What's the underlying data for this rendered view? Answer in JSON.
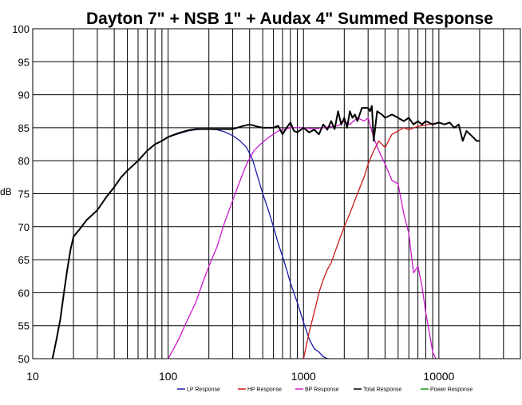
{
  "chart_data": {
    "type": "line",
    "title": "Dayton 7\" + NSB 1\" + Audax 4\"  Summed Response",
    "xlabel": "",
    "ylabel": "dB",
    "xscale": "log",
    "xlim": [
      10,
      40000
    ],
    "ylim": [
      50,
      100
    ],
    "grid": true,
    "legend_position": "bottom",
    "x_tick_labels": [
      "10",
      "100",
      "1000",
      "10000"
    ],
    "y_tick_labels": [
      "100",
      "95",
      "90",
      "85",
      "80",
      "75",
      "70",
      "65",
      "60",
      "55",
      "50"
    ],
    "series": [
      {
        "name": "LP Response",
        "color": "#1a1aa8",
        "x": [
          100,
          120,
          140,
          160,
          180,
          200,
          230,
          260,
          300,
          340,
          380,
          420,
          460,
          500,
          550,
          600,
          650,
          700,
          750,
          800,
          900,
          1000,
          1100,
          1200,
          1300,
          1400,
          1500
        ],
        "y": [
          83.6,
          84.1,
          84.5,
          84.7,
          84.8,
          84.8,
          84.7,
          84.4,
          83.8,
          83.0,
          82.0,
          80.2,
          77.5,
          75.0,
          72.5,
          70.0,
          67.5,
          65.5,
          63.5,
          61.5,
          58.5,
          55.5,
          53.0,
          51.5,
          51.0,
          50.3,
          50.0
        ]
      },
      {
        "name": "HP Response",
        "color": "#cc1a1a",
        "x": [
          1000,
          1050,
          1100,
          1200,
          1300,
          1400,
          1500,
          1600,
          1800,
          2000,
          2200,
          2500,
          2800,
          3000,
          3300,
          3600,
          4000,
          4500,
          5000,
          5500,
          6000,
          7000,
          8000,
          9000,
          10000
        ],
        "y": [
          50.0,
          52.0,
          54.0,
          57.0,
          60.0,
          62.0,
          63.5,
          64.5,
          67.5,
          70.0,
          72.0,
          75.0,
          77.5,
          79.5,
          81.5,
          83.0,
          82.0,
          84.0,
          84.5,
          85.0,
          84.7,
          85.2,
          85.4,
          85.6,
          85.8
        ]
      },
      {
        "name": "BP Response",
        "color": "#cc1acc",
        "x": [
          100,
          110,
          120,
          140,
          160,
          180,
          200,
          230,
          260,
          300,
          340,
          380,
          430,
          480,
          550,
          650,
          800,
          1000,
          1200,
          1500,
          1800,
          2000,
          2200,
          2500,
          2800,
          3000,
          3300,
          3600,
          4000,
          4500,
          5000,
          5500,
          6000,
          6500,
          7000,
          7500,
          8000,
          8500,
          9000,
          9500
        ],
        "y": [
          50.0,
          51.5,
          53.0,
          56.0,
          58.5,
          61.5,
          64.0,
          67.0,
          70.5,
          74.0,
          77.0,
          79.5,
          81.5,
          82.5,
          83.5,
          84.5,
          85.0,
          85.0,
          84.8,
          85.1,
          85.3,
          86.0,
          85.5,
          86.5,
          86.0,
          86.5,
          83.5,
          81.5,
          79.5,
          77.0,
          76.5,
          72.0,
          69.0,
          63.0,
          64.0,
          61.0,
          57.0,
          54.0,
          51.0,
          50.0
        ]
      },
      {
        "name": "Total Response",
        "color": "#000000",
        "x": [
          14,
          15,
          16,
          17,
          18,
          19,
          20,
          22,
          25,
          30,
          35,
          40,
          45,
          50,
          60,
          70,
          80,
          90,
          100,
          120,
          140,
          160,
          180,
          200,
          250,
          300,
          350,
          400,
          450,
          500,
          550,
          600,
          650,
          700,
          750,
          800,
          850,
          900,
          1000,
          1100,
          1200,
          1300,
          1400,
          1500,
          1600,
          1700,
          1800,
          1900,
          2000,
          2100,
          2200,
          2300,
          2400,
          2500,
          2700,
          3000,
          3100,
          3200,
          3300,
          3500,
          3800,
          4000,
          4500,
          5000,
          5500,
          6000,
          6500,
          7000,
          7500,
          8000,
          9000,
          10000,
          11000,
          12000,
          13000,
          14000,
          15000,
          16000,
          17000,
          18000,
          19000,
          20000
        ],
        "y": [
          50.0,
          53.0,
          56.0,
          60.0,
          63.5,
          66.5,
          68.5,
          69.5,
          71.0,
          72.5,
          74.5,
          76.0,
          77.5,
          78.5,
          80.0,
          81.5,
          82.5,
          83.0,
          83.6,
          84.2,
          84.6,
          84.8,
          84.8,
          84.8,
          84.8,
          84.8,
          85.2,
          85.5,
          85.2,
          85.0,
          85.0,
          85.0,
          85.3,
          84.0,
          85.0,
          85.8,
          84.5,
          84.3,
          85.0,
          84.3,
          84.7,
          84.0,
          85.5,
          84.7,
          86.0,
          84.8,
          87.5,
          85.5,
          86.5,
          85.0,
          87.5,
          86.5,
          87.0,
          86.0,
          88.0,
          88.0,
          87.5,
          88.3,
          83.0,
          87.5,
          87.0,
          86.5,
          87.0,
          86.5,
          86.0,
          86.5,
          85.5,
          86.0,
          85.5,
          86.0,
          85.5,
          85.8,
          85.5,
          85.8,
          85.0,
          85.5,
          83.0,
          84.5,
          84.0,
          83.5,
          83.0,
          83.0
        ]
      },
      {
        "name": "Power Response",
        "color": "#1a9c1a",
        "x": [],
        "y": []
      }
    ]
  }
}
